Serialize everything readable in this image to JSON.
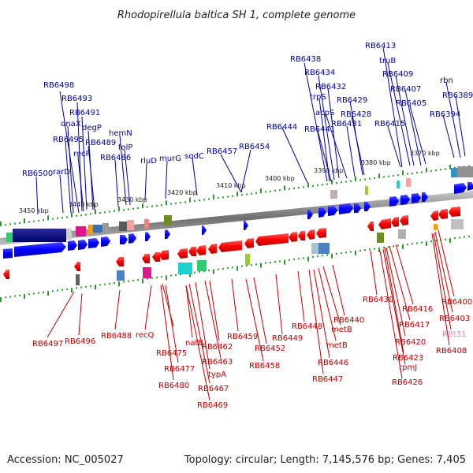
{
  "title": "Rhodopirellula baltica SH 1, complete genome",
  "footer": {
    "accession": "Accession: NC_005027",
    "topology": "Topology: circular; Length: 7,145,576 bp; Genes: 7,405"
  },
  "colors": {
    "forward": "#0000ff",
    "reverse": "#ff0000",
    "top_label": "#0000a0",
    "bottom_label": "#c00000",
    "rna_label": "#e38ab8",
    "tick": "#2a9a2a",
    "backbone": "#7a7a7a"
  },
  "kbp_markers": [
    "3450 kbp",
    "3440 kbp",
    "3430 kbp",
    "3420 kbp",
    "3410 kbp",
    "3400 kbp",
    "3390 kbp",
    "3380 kbp",
    "3370 kbp"
  ],
  "top_labels": [
    "RB6413",
    "truB",
    "RB6438",
    "RB6409",
    "RB6434",
    "RB6407",
    "RB6432",
    "rbn",
    "RB6389",
    "trpS",
    "RB6405",
    "RB6429",
    "RB6498",
    "acpS",
    "RB6394",
    "RB6428",
    "RB6493",
    "RB6491",
    "RB6431",
    "RB6415",
    "RB6444",
    "RB6441",
    "degP",
    "hemN",
    "dnaX",
    "RB6495",
    "RB6489",
    "folP",
    "recR",
    "RB6486",
    "rluD",
    "murG",
    "sqdC",
    "RB6457",
    "RB6454",
    "rarD",
    "RB6500"
  ],
  "bottom_labels": [
    "RB6497",
    "RB6496",
    "RB6488",
    "recQ",
    "RB6475",
    "natB",
    "RB6477",
    "RB6462",
    "RB6459",
    "RB6463",
    "RB6480",
    "typA",
    "RB6467",
    "RB6469",
    "RB6452",
    "RB6458",
    "RB6449",
    "RB6448",
    "RB6440",
    "metB",
    "metB",
    "RB6446",
    "RB6447",
    "RB6430",
    "RB6416",
    "RB6417",
    "RB6420",
    "RB6423",
    "rpmJ",
    "RB6426",
    "RB6400",
    "RB6403",
    "RB6408"
  ],
  "rna_labels": [
    "RBt31"
  ]
}
